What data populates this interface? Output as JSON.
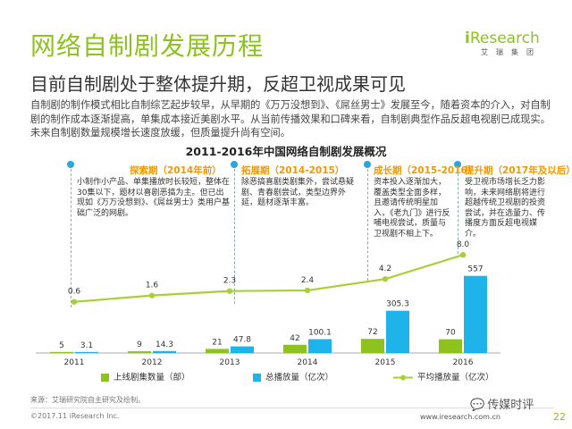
{
  "title": "网络自制剧发展历程",
  "logo": {
    "brand_prefix": "i",
    "brand_rest": "Research",
    "cn": "艾瑞集团"
  },
  "subtitle": "目前自制剧处于整体提升期，反超卫视成果可见",
  "paragraph": "自制剧的制作模式相比自制综艺起步较早，从早期的《万万没想到》、《屌丝男士》发展至今，随着资本的介入，对自制剧的制作成本逐渐提高，单集成本接近美剧水平。从当前传播效果和口碑来看，自制剧典型作品反超电视剧已成现实。未来自制剧数量规模增长速度放缓，但质量提升尚有空间。",
  "phases": [
    {
      "label": "探索期（2014年前）",
      "desc": "小制作小产品、单集播放时长较短，整体在30集以下，题材以喜剧恶搞为主。但已出现如《万万没想到》、《屌丝男士》类用户基础广泛的网剧。"
    },
    {
      "label": "拓展期（2014-2015）",
      "desc": "除恶搞喜剧类剧集外，尝试悬疑剧、青春剧尝试，类型边界外延，题材逐渐丰富。"
    },
    {
      "label": "成长期（2015-2016）",
      "desc": "资本投入逐渐加大，覆盖类型全面多样，且邀请传统明星加入，《老九门》进行反哺电视尝试，质量与卫视剧不相上下。"
    },
    {
      "label": "提升期（2017年及以后）",
      "desc": "受卫视市场增长乏力影响，未来网络剧将进行超越传统卫视剧的投资尝试，并在选量力、传播度方面反超电视媒介。"
    }
  ],
  "chart_data": {
    "type": "bar",
    "title": "2011-2016年中国网络自制剧发展概况",
    "categories": [
      "2011",
      "2012",
      "2013",
      "2014",
      "2015",
      "2016"
    ],
    "series": [
      {
        "name": "上线剧集数量（部）",
        "type": "bar",
        "color": "#8dc21f",
        "values": [
          5,
          9,
          21,
          42,
          72,
          70
        ]
      },
      {
        "name": "总播放量（亿次）",
        "type": "bar",
        "color": "#1eb4ea",
        "values": [
          3.1,
          14.3,
          47.8,
          100.1,
          305.3,
          557
        ]
      },
      {
        "name": "平均播放量（亿次）",
        "type": "line",
        "color": "#a9cf38",
        "values": [
          0.6,
          1.6,
          2.3,
          2.4,
          4.2,
          8.0
        ]
      }
    ],
    "legend_position": "bottom",
    "grid": false
  },
  "footer": {
    "source": "来源：艾瑞研究院自主研究及绘制。",
    "copyright": "©2017.11 iResearch Inc.",
    "website": "www.iresearch.com.cn",
    "wechat": "传媒时评",
    "page": "22"
  },
  "colors": {
    "accent_green": "#8dc21f",
    "phase_orange": "#f39800",
    "dot_blue": "#2aa6df"
  }
}
